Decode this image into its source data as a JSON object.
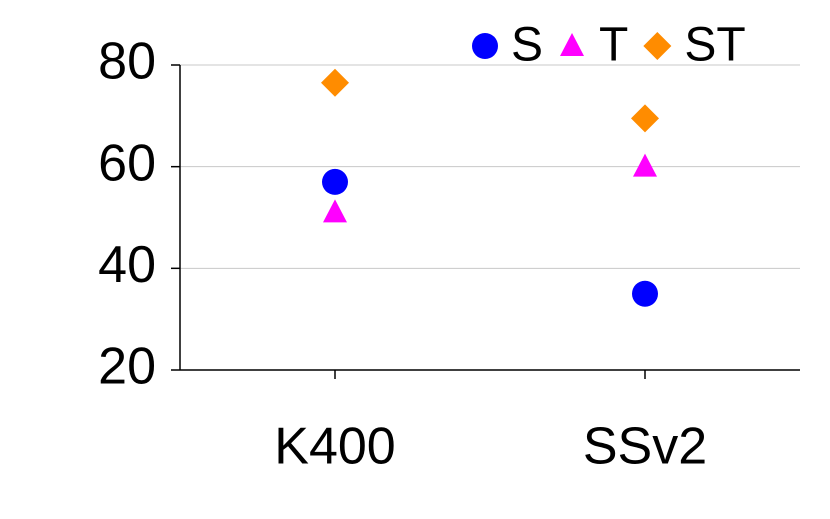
{
  "chart_data": {
    "type": "scatter",
    "categories": [
      "K400",
      "SSv2"
    ],
    "series": [
      {
        "name": "S",
        "color": "#0000ff",
        "marker": "circle",
        "values": [
          57,
          35
        ]
      },
      {
        "name": "T",
        "color": "#ff00ff",
        "marker": "triangle",
        "values": [
          51,
          60
        ]
      },
      {
        "name": "ST",
        "color": "#ff8c00",
        "marker": "diamond",
        "values": [
          76.5,
          69.5
        ]
      }
    ],
    "ylim": [
      20,
      80
    ],
    "yticks": [
      20,
      40,
      60,
      80
    ],
    "grid": true,
    "legend": "top-right"
  }
}
